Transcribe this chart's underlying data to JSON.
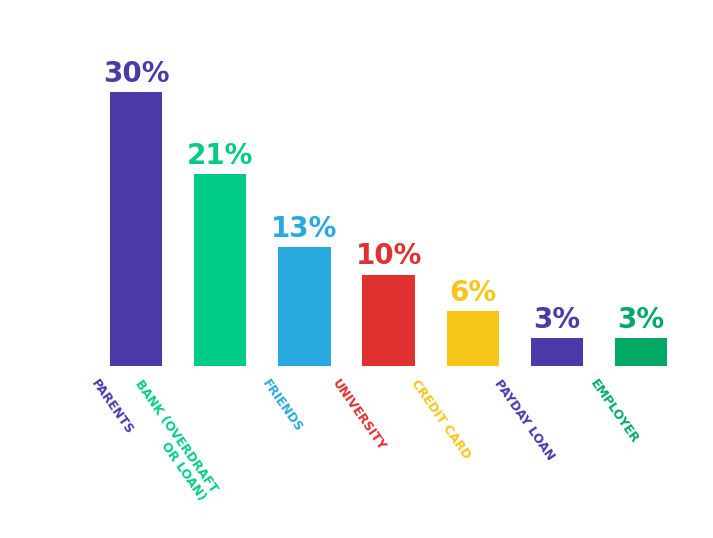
{
  "categories": [
    "PARENTS",
    "BANK (OVERDRAFT\nOR LOAN)",
    "FRIENDS",
    "UNIVERSITY",
    "CREDIT CARD",
    "PAYDAY LOAN",
    "EMPLOYER"
  ],
  "values": [
    30,
    21,
    13,
    10,
    6,
    3,
    3
  ],
  "bar_colors": [
    "#4a3aaa",
    "#00cc88",
    "#29aadf",
    "#e03030",
    "#f5c518",
    "#4a3aaa",
    "#00aa66"
  ],
  "label_colors": [
    "#4a3aaa",
    "#00cc88",
    "#29aadf",
    "#e03030",
    "#f5c518",
    "#4a3aaa",
    "#00aa66"
  ],
  "tick_colors": [
    "#4a3aaa",
    "#00cc88",
    "#29aadf",
    "#e03030",
    "#f5c518",
    "#4a3aaa",
    "#00aa66"
  ],
  "value_labels": [
    "30%",
    "21%",
    "13%",
    "10%",
    "6%",
    "3%",
    "3%"
  ],
  "background_color": "#ffffff",
  "ylim": [
    0,
    36
  ],
  "label_rotation": -55,
  "label_fontsize": 9,
  "value_fontsize": 20
}
